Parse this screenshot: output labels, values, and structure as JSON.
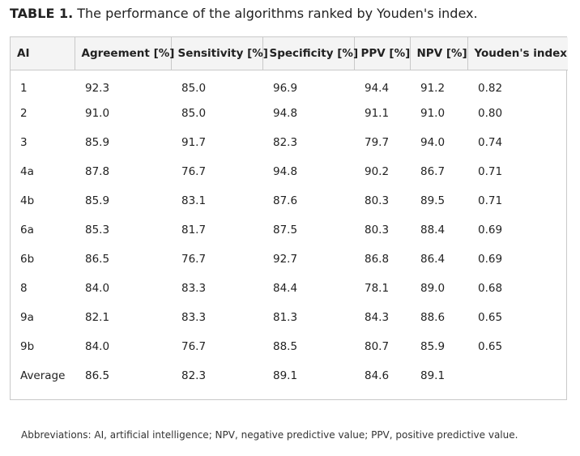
{
  "caption": {
    "label": "TABLE 1.",
    "text": "The performance of the algorithms ranked by Youden's index."
  },
  "table": {
    "headers": [
      "AI",
      "Agreement [%]",
      "Sensitivity [%]",
      "Specificity [%]",
      "PPV [%]",
      "NPV [%]",
      "Youden's index"
    ],
    "rows": [
      [
        "1",
        "92.3",
        "85.0",
        "96.9",
        "94.4",
        "91.2",
        "0.82"
      ],
      [
        "2",
        "91.0",
        "85.0",
        "94.8",
        "91.1",
        "91.0",
        "0.80"
      ],
      [
        "3",
        "85.9",
        "91.7",
        "82.3",
        "79.7",
        "94.0",
        "0.74"
      ],
      [
        "4a",
        "87.8",
        "76.7",
        "94.8",
        "90.2",
        "86.7",
        "0.71"
      ],
      [
        "4b",
        "85.9",
        "83.1",
        "87.6",
        "80.3",
        "89.5",
        "0.71"
      ],
      [
        "6a",
        "85.3",
        "81.7",
        "87.5",
        "80.3",
        "88.4",
        "0.69"
      ],
      [
        "6b",
        "86.5",
        "76.7",
        "92.7",
        "86.8",
        "86.4",
        "0.69"
      ],
      [
        "8",
        "84.0",
        "83.3",
        "84.4",
        "78.1",
        "89.0",
        "0.68"
      ],
      [
        "9a",
        "82.1",
        "83.3",
        "81.3",
        "84.3",
        "88.6",
        "0.65"
      ],
      [
        "9b",
        "84.0",
        "76.7",
        "88.5",
        "80.7",
        "85.9",
        "0.65"
      ],
      [
        "Average",
        "86.5",
        "82.3",
        "89.1",
        "84.6",
        "89.1",
        ""
      ]
    ]
  },
  "footnote": "Abbreviations: AI, artificial intelligence; NPV, negative predictive value; PPV, positive predictive value."
}
